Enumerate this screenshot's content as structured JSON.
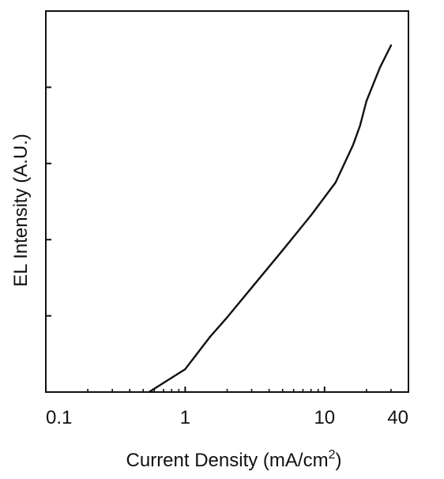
{
  "chart_data": {
    "type": "line",
    "title": "",
    "xlabel": "Current Density (mA/cm",
    "xlabel_superscript": "2",
    "xlabel_suffix": ")",
    "ylabel": "EL Intensity (A.U.)",
    "xscale": "log",
    "yscale": "log",
    "xlim": [
      0.1,
      40
    ],
    "ylim": [
      0,
      5
    ],
    "xticks": [
      0.1,
      1,
      10,
      40
    ],
    "xtick_labels": [
      "0.1",
      "1",
      "10",
      "40"
    ],
    "yticks": [
      1,
      2,
      3,
      4
    ],
    "yticks_labeled": false,
    "grid": false,
    "legend": "none",
    "series": [
      {
        "x": [
          0.55,
          1.0,
          1.5,
          2.0,
          3.0,
          5.0,
          8.0,
          12.0,
          16.0,
          18.0,
          20.0,
          25.0,
          30.0
        ],
        "y": [
          0.0,
          0.3,
          0.72,
          0.98,
          1.37,
          1.86,
          2.32,
          2.75,
          3.24,
          3.5,
          3.82,
          4.26,
          4.55
        ]
      }
    ],
    "line_color": "#111111"
  }
}
